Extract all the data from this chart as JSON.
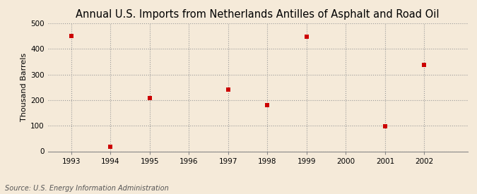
{
  "title": "Annual U.S. Imports from Netherlands Antilles of Asphalt and Road Oil",
  "ylabel": "Thousand Barrels",
  "source": "Source: U.S. Energy Information Administration",
  "background_color": "#f5ead9",
  "years": [
    1993,
    1994,
    1995,
    1997,
    1998,
    1999,
    2001,
    2002
  ],
  "values": [
    450,
    17,
    207,
    240,
    180,
    447,
    98,
    337
  ],
  "marker_color": "#cc0000",
  "marker": "s",
  "marker_size": 4,
  "xlim": [
    1992.4,
    2003.1
  ],
  "ylim": [
    0,
    500
  ],
  "yticks": [
    0,
    100,
    200,
    300,
    400,
    500
  ],
  "xticks": [
    1993,
    1994,
    1995,
    1996,
    1997,
    1998,
    1999,
    2000,
    2001,
    2002
  ],
  "grid_color": "#999999",
  "grid_linestyle": ":",
  "grid_linewidth": 0.8,
  "title_fontsize": 10.5,
  "ylabel_fontsize": 8,
  "tick_fontsize": 7.5,
  "source_fontsize": 7
}
